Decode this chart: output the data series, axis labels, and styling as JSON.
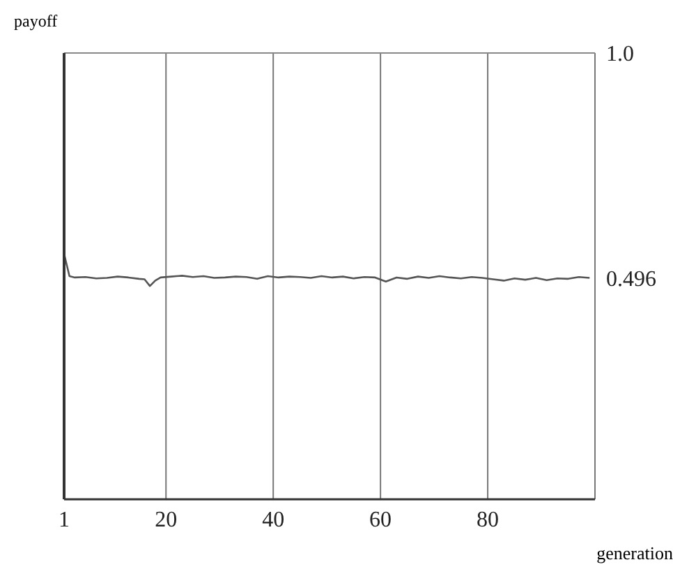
{
  "chart_data": {
    "type": "line",
    "xlabel": "generation",
    "ylabel": "payoff",
    "x": [
      1,
      2,
      3,
      5,
      7,
      9,
      11,
      13,
      15,
      16,
      17,
      18,
      19,
      21,
      23,
      25,
      27,
      29,
      31,
      33,
      35,
      37,
      39,
      41,
      43,
      45,
      47,
      49,
      51,
      53,
      55,
      57,
      59,
      61,
      63,
      65,
      67,
      69,
      71,
      73,
      75,
      77,
      79,
      81,
      83,
      85,
      87,
      89,
      91,
      93,
      95,
      97,
      99
    ],
    "series": [
      {
        "color": "#555555",
        "values": [
          0.55,
          0.5,
          0.497,
          0.498,
          0.495,
          0.496,
          0.499,
          0.497,
          0.494,
          0.493,
          0.478,
          0.49,
          0.497,
          0.499,
          0.501,
          0.498,
          0.5,
          0.496,
          0.497,
          0.499,
          0.498,
          0.494,
          0.5,
          0.497,
          0.499,
          0.498,
          0.496,
          0.5,
          0.497,
          0.499,
          0.495,
          0.498,
          0.497,
          0.488,
          0.497,
          0.494,
          0.499,
          0.496,
          0.5,
          0.497,
          0.495,
          0.498,
          0.496,
          0.493,
          0.49,
          0.495,
          0.492,
          0.496,
          0.491,
          0.495,
          0.494,
          0.498,
          0.496
        ]
      }
    ],
    "xlim": [
      1,
      100
    ],
    "xticks": [
      1,
      20,
      40,
      60,
      80
    ],
    "ylim": [
      0,
      1
    ],
    "yticks": [
      0.496,
      {
        "value": 1,
        "label": "1.0"
      }
    ],
    "ref_lines": [
      {
        "axis": "y",
        "value": 1,
        "color": "#888888"
      }
    ],
    "grid": "x",
    "marker": "none",
    "line_style": "solid"
  }
}
